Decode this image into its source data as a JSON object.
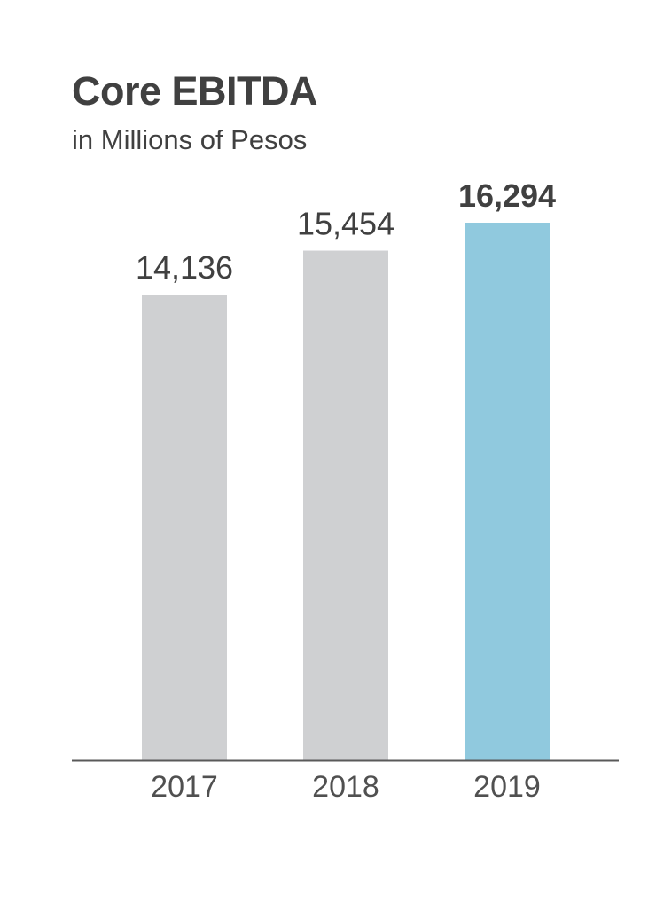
{
  "chart_data": {
    "type": "bar",
    "title": "Core EBITDA",
    "subtitle": "in Millions of Pesos",
    "categories": [
      "2017",
      "2018",
      "2019"
    ],
    "values": [
      14136,
      15454,
      16294
    ],
    "value_labels": [
      "14,136",
      "15,454",
      "16,294"
    ],
    "highlight_index": 2,
    "colors": {
      "default_bar": "#cfd0d2",
      "highlight_bar": "#90c9de",
      "axis": "#595959",
      "text": "#404040"
    },
    "grid": false,
    "legend": "none"
  }
}
